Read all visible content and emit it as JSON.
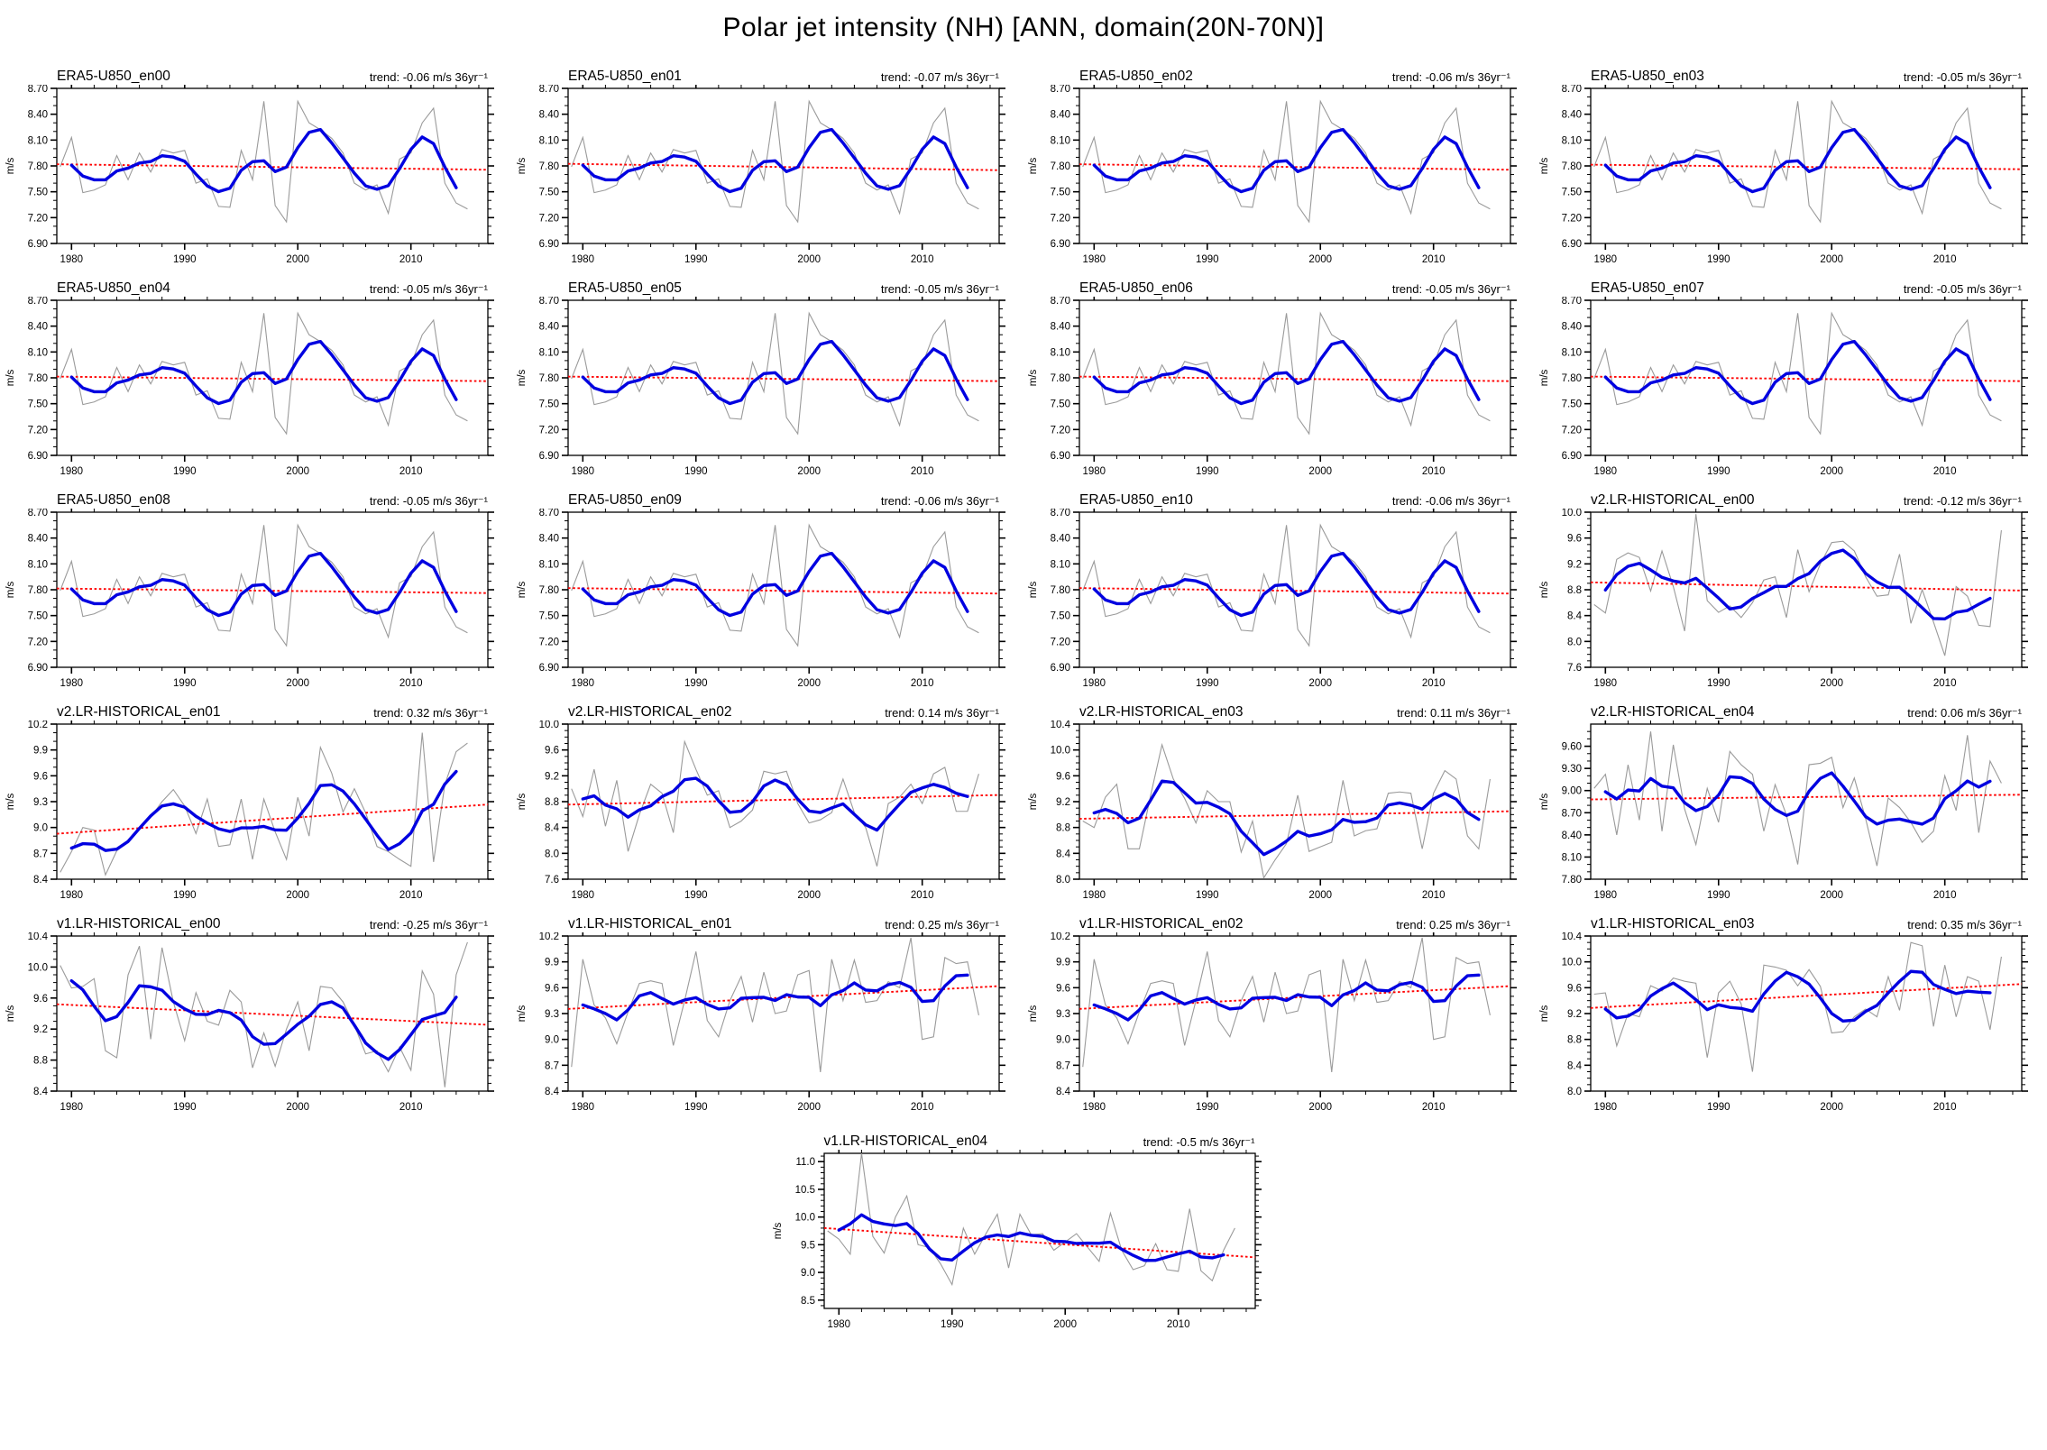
{
  "page_title": "Polar jet intensity (NH) [ANN, domain(20N-70N)]",
  "axes_common": {
    "ylabel": "m/s",
    "x_major_ticks": [
      1980,
      1990,
      2000,
      2010
    ],
    "x_major_labels": [
      "1980",
      "1990",
      "2000",
      "2010"
    ],
    "x_minor_step_years": 2,
    "xlim": [
      1978.7,
      2016.8
    ],
    "years_start": 1979,
    "years_end": 2015
  },
  "style": {
    "annual_line_color": "#9a9a9a",
    "smoothed_line_color": "#0000e0",
    "trend_line_color": "#ff0000",
    "frame_color": "#000000"
  },
  "series_library": {
    "era5": [
      7.79,
      8.13,
      7.49,
      7.52,
      7.58,
      7.92,
      7.64,
      7.95,
      7.73,
      7.99,
      7.95,
      7.98,
      7.6,
      7.65,
      7.33,
      7.32,
      7.98,
      7.64,
      8.55,
      7.34,
      7.15,
      8.55,
      8.3,
      8.22,
      8.12,
      7.95,
      7.6,
      7.52,
      7.58,
      7.25,
      7.88,
      7.95,
      8.3,
      8.47,
      7.6,
      7.37,
      7.3
    ],
    "v2_en00": [
      8.57,
      8.44,
      9.27,
      9.37,
      9.3,
      8.78,
      9.4,
      8.85,
      8.16,
      9.97,
      8.63,
      8.45,
      8.55,
      8.37,
      8.6,
      8.95,
      9.0,
      8.37,
      9.42,
      8.77,
      9.2,
      9.53,
      9.55,
      9.4,
      9.0,
      8.7,
      8.72,
      9.35,
      8.28,
      8.8,
      8.3,
      7.78,
      8.85,
      8.7,
      8.25,
      8.23,
      9.72
    ],
    "v2_en01": [
      8.48,
      8.72,
      9.0,
      8.97,
      8.45,
      8.73,
      8.85,
      8.98,
      9.12,
      9.3,
      9.44,
      9.25,
      8.93,
      9.33,
      8.78,
      8.8,
      9.33,
      8.63,
      9.33,
      8.95,
      8.63,
      9.35,
      8.9,
      9.93,
      9.63,
      9.18,
      9.45,
      9.17,
      8.78,
      8.72,
      8.63,
      8.55,
      10.1,
      8.6,
      9.5,
      9.88,
      9.98
    ],
    "v2_en02": [
      9.0,
      8.57,
      9.3,
      8.42,
      9.13,
      8.03,
      8.6,
      9.07,
      8.93,
      8.32,
      9.73,
      9.3,
      8.9,
      8.97,
      8.4,
      8.5,
      8.67,
      9.27,
      9.23,
      9.27,
      8.77,
      8.47,
      8.52,
      8.63,
      9.15,
      8.63,
      8.4,
      7.8,
      8.77,
      8.87,
      9.07,
      8.77,
      9.23,
      9.33,
      8.65,
      8.65,
      9.23
    ],
    "v2_en03": [
      8.9,
      8.8,
      9.27,
      9.47,
      8.47,
      8.47,
      9.3,
      10.08,
      9.55,
      9.25,
      8.87,
      9.37,
      9.2,
      9.2,
      8.42,
      8.9,
      8.02,
      8.3,
      8.55,
      9.3,
      8.43,
      8.5,
      8.57,
      9.53,
      8.67,
      8.75,
      8.78,
      9.33,
      9.35,
      9.33,
      8.47,
      9.33,
      9.68,
      9.55,
      8.67,
      8.47,
      9.55
    ],
    "v2_en04": [
      9.03,
      9.22,
      8.4,
      9.35,
      8.6,
      9.8,
      8.45,
      9.62,
      8.75,
      8.27,
      9.03,
      8.57,
      9.53,
      9.35,
      9.22,
      8.45,
      9.08,
      8.67,
      8.0,
      9.35,
      9.37,
      9.45,
      8.77,
      9.17,
      8.62,
      7.98,
      8.9,
      8.77,
      8.57,
      8.3,
      8.45,
      9.2,
      8.73,
      9.75,
      8.43,
      9.4,
      9.1
    ],
    "v1_en00": [
      10.02,
      9.73,
      9.75,
      9.85,
      8.92,
      8.83,
      9.9,
      10.27,
      9.07,
      10.25,
      9.55,
      9.05,
      9.67,
      9.3,
      9.25,
      9.7,
      9.55,
      8.7,
      9.15,
      8.72,
      9.2,
      9.55,
      8.92,
      9.75,
      9.73,
      9.55,
      9.25,
      8.88,
      8.92,
      8.65,
      8.97,
      8.67,
      9.95,
      9.65,
      8.45,
      9.9,
      10.32
    ],
    "v1_en01": [
      8.68,
      9.93,
      9.4,
      9.25,
      8.95,
      9.32,
      9.65,
      9.68,
      9.65,
      8.93,
      9.45,
      10.02,
      9.22,
      9.03,
      9.45,
      9.73,
      9.2,
      9.78,
      9.3,
      9.33,
      9.75,
      9.8,
      8.62,
      9.93,
      9.45,
      9.92,
      9.43,
      9.45,
      9.67,
      9.6,
      10.18,
      9.0,
      9.03,
      9.95,
      9.88,
      9.9,
      9.28
    ],
    "v1_en03": [
      9.5,
      9.52,
      8.7,
      9.2,
      9.15,
      9.63,
      9.55,
      9.75,
      9.7,
      9.67,
      8.52,
      9.52,
      9.7,
      9.35,
      8.3,
      9.95,
      9.92,
      9.87,
      9.63,
      9.88,
      9.62,
      8.9,
      8.92,
      9.15,
      9.27,
      9.15,
      9.77,
      9.25,
      10.3,
      10.25,
      9.0,
      9.95,
      9.15,
      9.77,
      9.7,
      8.95,
      10.08
    ],
    "v1_en04": [
      9.75,
      9.6,
      9.33,
      11.15,
      9.65,
      9.35,
      10.0,
      10.38,
      9.5,
      9.45,
      9.15,
      8.78,
      9.8,
      9.33,
      9.7,
      10.05,
      9.08,
      10.05,
      9.68,
      9.7,
      9.4,
      9.55,
      9.7,
      9.45,
      9.2,
      10.07,
      9.4,
      9.05,
      9.12,
      9.52,
      9.05,
      9.02,
      10.15,
      9.03,
      8.85,
      9.4,
      9.8
    ]
  },
  "chart_data": {
    "type": "line",
    "x_years": {
      "start": 1979,
      "end": 2015
    },
    "series_roles": [
      {
        "name": "annual",
        "color": "#9a9a9a"
      },
      {
        "name": "smoothed",
        "color": "#0000e0"
      },
      {
        "name": "linear-trend",
        "color": "#ff0000",
        "style": "dotted"
      }
    ],
    "panels": [
      {
        "title": "ERA5-U850_en00",
        "trend_label": "trend: -0.06 m/s 36yr⁻¹",
        "trend": -0.06,
        "ylim": [
          6.9,
          8.7
        ],
        "yticks": [
          "6.90",
          "7.20",
          "7.50",
          "7.80",
          "8.10",
          "8.40",
          "8.70"
        ],
        "yminor_div": 3,
        "annual_ref": "era5"
      },
      {
        "title": "ERA5-U850_en01",
        "trend_label": "trend: -0.07 m/s 36yr⁻¹",
        "trend": -0.07,
        "ylim": [
          6.9,
          8.7
        ],
        "yticks": [
          "6.90",
          "7.20",
          "7.50",
          "7.80",
          "8.10",
          "8.40",
          "8.70"
        ],
        "yminor_div": 3,
        "annual_ref": "era5"
      },
      {
        "title": "ERA5-U850_en02",
        "trend_label": "trend: -0.06 m/s 36yr⁻¹",
        "trend": -0.06,
        "ylim": [
          6.9,
          8.7
        ],
        "yticks": [
          "6.90",
          "7.20",
          "7.50",
          "7.80",
          "8.10",
          "8.40",
          "8.70"
        ],
        "yminor_div": 3,
        "annual_ref": "era5"
      },
      {
        "title": "ERA5-U850_en03",
        "trend_label": "trend: -0.05 m/s 36yr⁻¹",
        "trend": -0.05,
        "ylim": [
          6.9,
          8.7
        ],
        "yticks": [
          "6.90",
          "7.20",
          "7.50",
          "7.80",
          "8.10",
          "8.40",
          "8.70"
        ],
        "yminor_div": 3,
        "annual_ref": "era5"
      },
      {
        "title": "ERA5-U850_en04",
        "trend_label": "trend: -0.05 m/s 36yr⁻¹",
        "trend": -0.05,
        "ylim": [
          6.9,
          8.7
        ],
        "yticks": [
          "6.90",
          "7.20",
          "7.50",
          "7.80",
          "8.10",
          "8.40",
          "8.70"
        ],
        "yminor_div": 3,
        "annual_ref": "era5"
      },
      {
        "title": "ERA5-U850_en05",
        "trend_label": "trend: -0.05 m/s 36yr⁻¹",
        "trend": -0.05,
        "ylim": [
          6.9,
          8.7
        ],
        "yticks": [
          "6.90",
          "7.20",
          "7.50",
          "7.80",
          "8.10",
          "8.40",
          "8.70"
        ],
        "yminor_div": 3,
        "annual_ref": "era5"
      },
      {
        "title": "ERA5-U850_en06",
        "trend_label": "trend: -0.05 m/s 36yr⁻¹",
        "trend": -0.05,
        "ylim": [
          6.9,
          8.7
        ],
        "yticks": [
          "6.90",
          "7.20",
          "7.50",
          "7.80",
          "8.10",
          "8.40",
          "8.70"
        ],
        "yminor_div": 3,
        "annual_ref": "era5"
      },
      {
        "title": "ERA5-U850_en07",
        "trend_label": "trend: -0.05 m/s 36yr⁻¹",
        "trend": -0.05,
        "ylim": [
          6.9,
          8.7
        ],
        "yticks": [
          "6.90",
          "7.20",
          "7.50",
          "7.80",
          "8.10",
          "8.40",
          "8.70"
        ],
        "yminor_div": 3,
        "annual_ref": "era5"
      },
      {
        "title": "ERA5-U850_en08",
        "trend_label": "trend: -0.05 m/s 36yr⁻¹",
        "trend": -0.05,
        "ylim": [
          6.9,
          8.7
        ],
        "yticks": [
          "6.90",
          "7.20",
          "7.50",
          "7.80",
          "8.10",
          "8.40",
          "8.70"
        ],
        "yminor_div": 3,
        "annual_ref": "era5"
      },
      {
        "title": "ERA5-U850_en09",
        "trend_label": "trend: -0.06 m/s 36yr⁻¹",
        "trend": -0.06,
        "ylim": [
          6.9,
          8.7
        ],
        "yticks": [
          "6.90",
          "7.20",
          "7.50",
          "7.80",
          "8.10",
          "8.40",
          "8.70"
        ],
        "yminor_div": 3,
        "annual_ref": "era5"
      },
      {
        "title": "ERA5-U850_en10",
        "trend_label": "trend: -0.06 m/s 36yr⁻¹",
        "trend": -0.06,
        "ylim": [
          6.9,
          8.7
        ],
        "yticks": [
          "6.90",
          "7.20",
          "7.50",
          "7.80",
          "8.10",
          "8.40",
          "8.70"
        ],
        "yminor_div": 3,
        "annual_ref": "era5"
      },
      {
        "title": "v2.LR-HISTORICAL_en00",
        "trend_label": "trend: -0.12 m/s 36yr⁻¹",
        "trend": -0.12,
        "ylim": [
          7.6,
          10.0
        ],
        "yticks": [
          "7.6",
          "8.0",
          "8.4",
          "8.8",
          "9.2",
          "9.6",
          "10.0"
        ],
        "yminor_div": 4,
        "annual_ref": "v2_en00"
      },
      {
        "title": "v2.LR-HISTORICAL_en01",
        "trend_label": "trend: 0.32 m/s 36yr⁻¹",
        "trend": 0.32,
        "ylim": [
          8.4,
          10.2
        ],
        "yticks": [
          "8.4",
          "8.7",
          "9.0",
          "9.3",
          "9.6",
          "9.9",
          "10.2"
        ],
        "yminor_div": 3,
        "annual_ref": "v2_en01"
      },
      {
        "title": "v2.LR-HISTORICAL_en02",
        "trend_label": "trend: 0.14 m/s 36yr⁻¹",
        "trend": 0.14,
        "ylim": [
          7.6,
          10.0
        ],
        "yticks": [
          "7.6",
          "8.0",
          "8.4",
          "8.8",
          "9.2",
          "9.6",
          "10.0"
        ],
        "yminor_div": 4,
        "annual_ref": "v2_en02"
      },
      {
        "title": "v2.LR-HISTORICAL_en03",
        "trend_label": "trend: 0.11 m/s 36yr⁻¹",
        "trend": 0.11,
        "ylim": [
          8.0,
          10.4
        ],
        "yticks": [
          "8.0",
          "8.4",
          "8.8",
          "9.2",
          "9.6",
          "10.0",
          "10.4"
        ],
        "yminor_div": 4,
        "annual_ref": "v2_en03"
      },
      {
        "title": "v2.LR-HISTORICAL_en04",
        "trend_label": "trend: 0.06 m/s 36yr⁻¹",
        "trend": 0.06,
        "ylim": [
          7.8,
          9.9
        ],
        "yticks": [
          "7.80",
          "8.10",
          "8.40",
          "8.70",
          "9.00",
          "9.30",
          "9.60"
        ],
        "yminor_div": 3,
        "annual_ref": "v2_en04"
      },
      {
        "title": "v1.LR-HISTORICAL_en00",
        "trend_label": "trend: -0.25 m/s 36yr⁻¹",
        "trend": -0.25,
        "ylim": [
          8.4,
          10.4
        ],
        "yticks": [
          "8.4",
          "8.8",
          "9.2",
          "9.6",
          "10.0",
          "10.4"
        ],
        "yminor_div": 4,
        "annual_ref": "v1_en00"
      },
      {
        "title": "v1.LR-HISTORICAL_en01",
        "trend_label": "trend: 0.25 m/s 36yr⁻¹",
        "trend": 0.25,
        "ylim": [
          8.4,
          10.2
        ],
        "yticks": [
          "8.4",
          "8.7",
          "9.0",
          "9.3",
          "9.6",
          "9.9",
          "10.2"
        ],
        "yminor_div": 3,
        "annual_ref": "v1_en01"
      },
      {
        "title": "v1.LR-HISTORICAL_en02",
        "trend_label": "trend: 0.25 m/s 36yr⁻¹",
        "trend": 0.25,
        "ylim": [
          8.4,
          10.2
        ],
        "yticks": [
          "8.4",
          "8.7",
          "9.0",
          "9.3",
          "9.6",
          "9.9",
          "10.2"
        ],
        "yminor_div": 3,
        "annual_ref": "v1_en01"
      },
      {
        "title": "v1.LR-HISTORICAL_en03",
        "trend_label": "trend: 0.35 m/s 36yr⁻¹",
        "trend": 0.35,
        "ylim": [
          8.0,
          10.4
        ],
        "yticks": [
          "8.0",
          "8.4",
          "8.8",
          "9.2",
          "9.6",
          "10.0",
          "10.4"
        ],
        "yminor_div": 4,
        "annual_ref": "v1_en03"
      },
      {
        "title": "v1.LR-HISTORICAL_en04",
        "trend_label": "trend: -0.5 m/s 36yr⁻¹",
        "trend": -0.5,
        "ylim": [
          8.35,
          11.15
        ],
        "yticks": [
          "8.5",
          "9.0",
          "9.5",
          "10.0",
          "10.5",
          "11.0"
        ],
        "yminor_div": 5,
        "annual_ref": "v1_en04"
      }
    ]
  }
}
